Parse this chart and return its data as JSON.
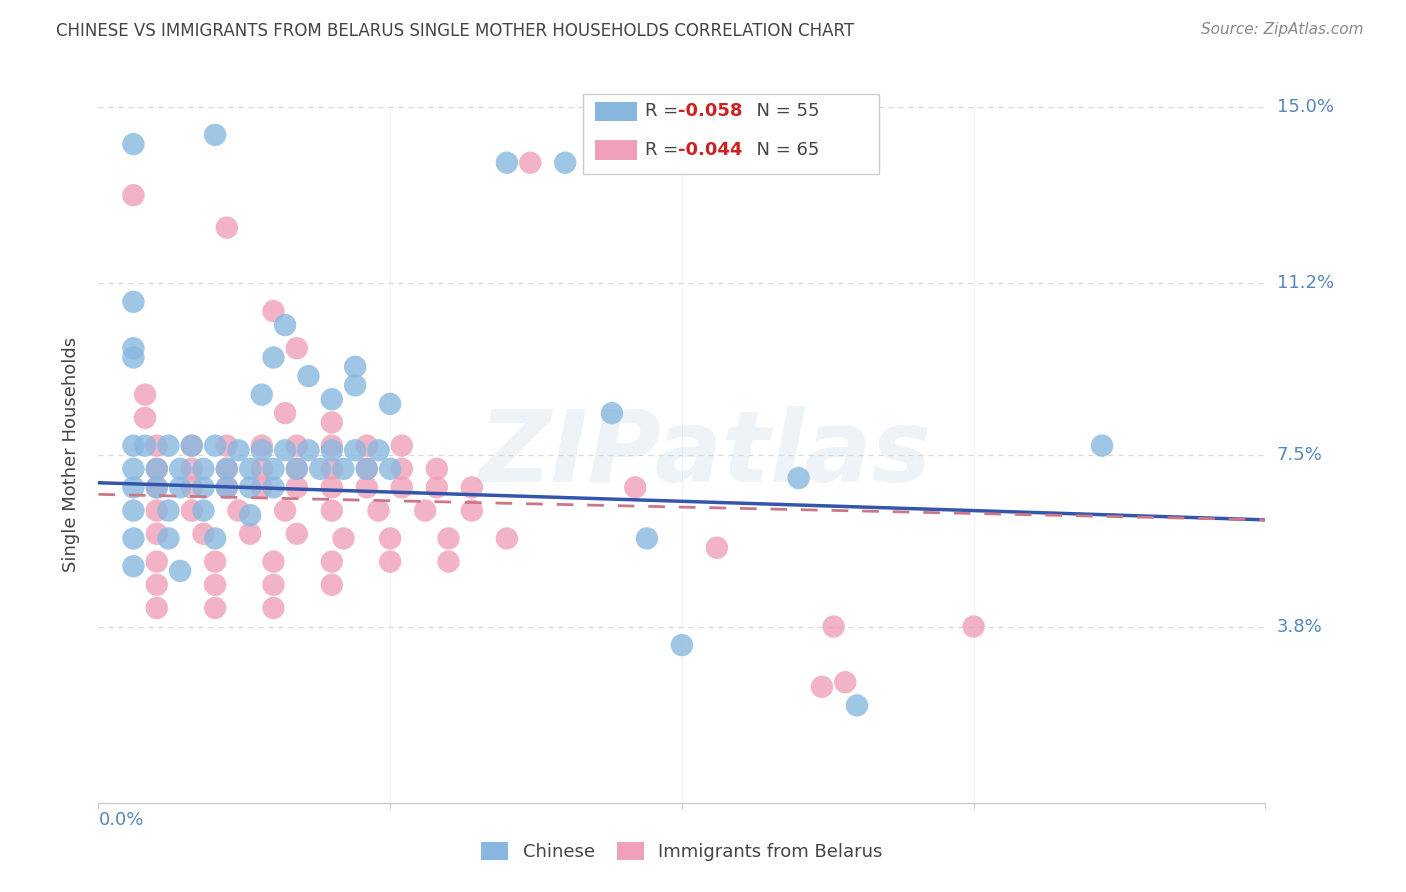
{
  "title": "CHINESE VS IMMIGRANTS FROM BELARUS SINGLE MOTHER HOUSEHOLDS CORRELATION CHART",
  "source": "Source: ZipAtlas.com",
  "ylabel": "Single Mother Households",
  "xlim": [
    0.0,
    0.1
  ],
  "ylim": [
    0.0,
    0.15
  ],
  "yticks": [
    0.038,
    0.075,
    0.112,
    0.15
  ],
  "ytick_labels": [
    "3.8%",
    "7.5%",
    "11.2%",
    "15.0%"
  ],
  "xticks": [
    0.0,
    0.025,
    0.05,
    0.075,
    0.1
  ],
  "xtick_labels_left": "0.0%",
  "watermark": "ZIPatlas",
  "background_color": "#ffffff",
  "grid_color": "#d8d8d8",
  "title_color": "#444444",
  "source_color": "#888888",
  "label_color": "#5588bb",
  "chinese_color": "#88b8e0",
  "belarus_color": "#f0a0b8",
  "chinese_line_color": "#3355aa",
  "belarus_line_color": "#cc7788",
  "chinese_r": "-0.058",
  "chinese_n": "55",
  "belarus_r": "-0.044",
  "belarus_n": "65",
  "chinese_scatter": [
    [
      0.003,
      0.142
    ],
    [
      0.01,
      0.144
    ],
    [
      0.035,
      0.138
    ],
    [
      0.04,
      0.138
    ],
    [
      0.003,
      0.098
    ],
    [
      0.003,
      0.096
    ],
    [
      0.015,
      0.096
    ],
    [
      0.022,
      0.094
    ],
    [
      0.003,
      0.108
    ],
    [
      0.016,
      0.103
    ],
    [
      0.018,
      0.092
    ],
    [
      0.022,
      0.09
    ],
    [
      0.014,
      0.088
    ],
    [
      0.02,
      0.087
    ],
    [
      0.025,
      0.086
    ],
    [
      0.003,
      0.077
    ],
    [
      0.004,
      0.077
    ],
    [
      0.006,
      0.077
    ],
    [
      0.008,
      0.077
    ],
    [
      0.01,
      0.077
    ],
    [
      0.012,
      0.076
    ],
    [
      0.014,
      0.076
    ],
    [
      0.016,
      0.076
    ],
    [
      0.018,
      0.076
    ],
    [
      0.02,
      0.076
    ],
    [
      0.022,
      0.076
    ],
    [
      0.024,
      0.076
    ],
    [
      0.003,
      0.072
    ],
    [
      0.005,
      0.072
    ],
    [
      0.007,
      0.072
    ],
    [
      0.009,
      0.072
    ],
    [
      0.011,
      0.072
    ],
    [
      0.013,
      0.072
    ],
    [
      0.015,
      0.072
    ],
    [
      0.017,
      0.072
    ],
    [
      0.019,
      0.072
    ],
    [
      0.021,
      0.072
    ],
    [
      0.023,
      0.072
    ],
    [
      0.025,
      0.072
    ],
    [
      0.003,
      0.068
    ],
    [
      0.005,
      0.068
    ],
    [
      0.007,
      0.068
    ],
    [
      0.009,
      0.068
    ],
    [
      0.011,
      0.068
    ],
    [
      0.013,
      0.068
    ],
    [
      0.015,
      0.068
    ],
    [
      0.003,
      0.063
    ],
    [
      0.006,
      0.063
    ],
    [
      0.009,
      0.063
    ],
    [
      0.013,
      0.062
    ],
    [
      0.003,
      0.057
    ],
    [
      0.006,
      0.057
    ],
    [
      0.01,
      0.057
    ],
    [
      0.003,
      0.051
    ],
    [
      0.007,
      0.05
    ],
    [
      0.044,
      0.084
    ],
    [
      0.06,
      0.07
    ],
    [
      0.086,
      0.077
    ],
    [
      0.047,
      0.057
    ],
    [
      0.05,
      0.034
    ],
    [
      0.065,
      0.021
    ]
  ],
  "belarus_scatter": [
    [
      0.003,
      0.131
    ],
    [
      0.037,
      0.138
    ],
    [
      0.011,
      0.124
    ],
    [
      0.015,
      0.106
    ],
    [
      0.017,
      0.098
    ],
    [
      0.004,
      0.088
    ],
    [
      0.004,
      0.083
    ],
    [
      0.016,
      0.084
    ],
    [
      0.02,
      0.082
    ],
    [
      0.005,
      0.077
    ],
    [
      0.008,
      0.077
    ],
    [
      0.011,
      0.077
    ],
    [
      0.014,
      0.077
    ],
    [
      0.017,
      0.077
    ],
    [
      0.02,
      0.077
    ],
    [
      0.023,
      0.077
    ],
    [
      0.026,
      0.077
    ],
    [
      0.005,
      0.072
    ],
    [
      0.008,
      0.072
    ],
    [
      0.011,
      0.072
    ],
    [
      0.014,
      0.072
    ],
    [
      0.017,
      0.072
    ],
    [
      0.02,
      0.072
    ],
    [
      0.023,
      0.072
    ],
    [
      0.026,
      0.072
    ],
    [
      0.029,
      0.072
    ],
    [
      0.005,
      0.068
    ],
    [
      0.008,
      0.068
    ],
    [
      0.011,
      0.068
    ],
    [
      0.014,
      0.068
    ],
    [
      0.017,
      0.068
    ],
    [
      0.02,
      0.068
    ],
    [
      0.023,
      0.068
    ],
    [
      0.026,
      0.068
    ],
    [
      0.029,
      0.068
    ],
    [
      0.032,
      0.068
    ],
    [
      0.005,
      0.063
    ],
    [
      0.008,
      0.063
    ],
    [
      0.012,
      0.063
    ],
    [
      0.016,
      0.063
    ],
    [
      0.02,
      0.063
    ],
    [
      0.024,
      0.063
    ],
    [
      0.028,
      0.063
    ],
    [
      0.032,
      0.063
    ],
    [
      0.005,
      0.058
    ],
    [
      0.009,
      0.058
    ],
    [
      0.013,
      0.058
    ],
    [
      0.017,
      0.058
    ],
    [
      0.021,
      0.057
    ],
    [
      0.025,
      0.057
    ],
    [
      0.03,
      0.057
    ],
    [
      0.035,
      0.057
    ],
    [
      0.005,
      0.052
    ],
    [
      0.01,
      0.052
    ],
    [
      0.015,
      0.052
    ],
    [
      0.02,
      0.052
    ],
    [
      0.025,
      0.052
    ],
    [
      0.03,
      0.052
    ],
    [
      0.005,
      0.047
    ],
    [
      0.01,
      0.047
    ],
    [
      0.015,
      0.047
    ],
    [
      0.02,
      0.047
    ],
    [
      0.005,
      0.042
    ],
    [
      0.01,
      0.042
    ],
    [
      0.015,
      0.042
    ],
    [
      0.046,
      0.068
    ],
    [
      0.053,
      0.055
    ],
    [
      0.063,
      0.038
    ],
    [
      0.075,
      0.038
    ],
    [
      0.062,
      0.025
    ],
    [
      0.064,
      0.026
    ]
  ],
  "chinese_trend_x": [
    0.0,
    0.1
  ],
  "chinese_trend_y": [
    0.069,
    0.061
  ],
  "belarus_trend_x": [
    0.0,
    0.1
  ],
  "belarus_trend_y": [
    0.0665,
    0.061
  ]
}
